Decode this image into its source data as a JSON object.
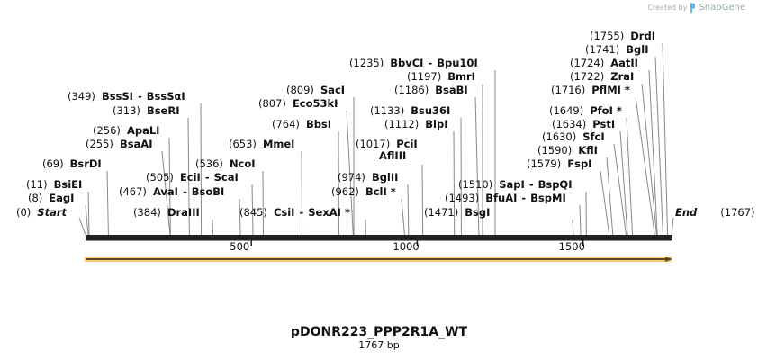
{
  "credit": {
    "prefix": "Created by",
    "brand": "SnapGene",
    "logo": "snapgene-logo-icon"
  },
  "plasmid": {
    "name": "pDONR223_PPP2R1A_WT",
    "length_label": "1767 bp",
    "length": 1767
  },
  "ends": {
    "start_pos": "(0)",
    "start_label": "Start",
    "end_pos": "(1767)",
    "end_label": "End"
  },
  "ticks": [
    {
      "value": 500,
      "label": "500"
    },
    {
      "value": 1000,
      "label": "1000"
    },
    {
      "value": 1500,
      "label": "1500"
    }
  ],
  "colors": {
    "backbone": "#222222",
    "feature_fill": "#f9c96b",
    "feature_stroke": "#5a4a2a",
    "leader_line": "#888888"
  },
  "sites": [
    {
      "pos": 8,
      "pos_label": "(8)",
      "name": "EagI"
    },
    {
      "pos": 11,
      "pos_label": "(11)",
      "name": "BsiEI"
    },
    {
      "pos": 69,
      "pos_label": "(69)",
      "name": "BsrDI"
    },
    {
      "pos": 255,
      "pos_label": "(255)",
      "name": "BsaAI"
    },
    {
      "pos": 256,
      "pos_label": "(256)",
      "name": "ApaLI"
    },
    {
      "pos": 313,
      "pos_label": "(313)",
      "name": "BseRI"
    },
    {
      "pos": 349,
      "pos_label": "(349)",
      "name": "BssSI",
      "name2": "BssSαI"
    },
    {
      "pos": 384,
      "pos_label": "(384)",
      "name": "DraIII"
    },
    {
      "pos": 467,
      "pos_label": "(467)",
      "name": "AvaI",
      "name2": "BsoBI"
    },
    {
      "pos": 505,
      "pos_label": "(505)",
      "name": "EciI",
      "name2": "ScaI"
    },
    {
      "pos": 536,
      "pos_label": "(536)",
      "name": "NcoI"
    },
    {
      "pos": 653,
      "pos_label": "(653)",
      "name": "MmeI"
    },
    {
      "pos": 764,
      "pos_label": "(764)",
      "name": "BbsI"
    },
    {
      "pos": 807,
      "pos_label": "(807)",
      "name": "Eco53kI"
    },
    {
      "pos": 809,
      "pos_label": "(809)",
      "name": "SacI"
    },
    {
      "pos": 845,
      "pos_label": "(845)",
      "name": "CsiI",
      "name2": "SexAI *"
    },
    {
      "pos": 962,
      "pos_label": "(962)",
      "name": "BclI *"
    },
    {
      "pos": 974,
      "pos_label": "(974)",
      "name": "BglII"
    },
    {
      "pos": 1017,
      "pos_label": "(1017)",
      "name": "PciI",
      "line2": "AflIII"
    },
    {
      "pos": 1112,
      "pos_label": "(1112)",
      "name": "BlpI"
    },
    {
      "pos": 1133,
      "pos_label": "(1133)",
      "name": "Bsu36I"
    },
    {
      "pos": 1186,
      "pos_label": "(1186)",
      "name": "BsaBI"
    },
    {
      "pos": 1197,
      "pos_label": "(1197)",
      "name": "BmrI"
    },
    {
      "pos": 1235,
      "pos_label": "(1235)",
      "name": "BbvCI",
      "name2": "Bpu10I"
    },
    {
      "pos": 1471,
      "pos_label": "(1471)",
      "name": "BsgI"
    },
    {
      "pos": 1493,
      "pos_label": "(1493)",
      "name": "BfuAI",
      "name2": "BspMI"
    },
    {
      "pos": 1510,
      "pos_label": "(1510)",
      "name": "SapI",
      "name2": "BspQI"
    },
    {
      "pos": 1579,
      "pos_label": "(1579)",
      "name": "FspI"
    },
    {
      "pos": 1590,
      "pos_label": "(1590)",
      "name": "KflI"
    },
    {
      "pos": 1630,
      "pos_label": "(1630)",
      "name": "SfcI"
    },
    {
      "pos": 1634,
      "pos_label": "(1634)",
      "name": "PstI"
    },
    {
      "pos": 1649,
      "pos_label": "(1649)",
      "name": "PfoI *"
    },
    {
      "pos": 1716,
      "pos_label": "(1716)",
      "name": "PflMI *"
    },
    {
      "pos": 1722,
      "pos_label": "(1722)",
      "name": "ZraI"
    },
    {
      "pos": 1724,
      "pos_label": "(1724)",
      "name": "AatII"
    },
    {
      "pos": 1741,
      "pos_label": "(1741)",
      "name": "BglI"
    },
    {
      "pos": 1755,
      "pos_label": "(1755)",
      "name": "DrdI"
    }
  ]
}
